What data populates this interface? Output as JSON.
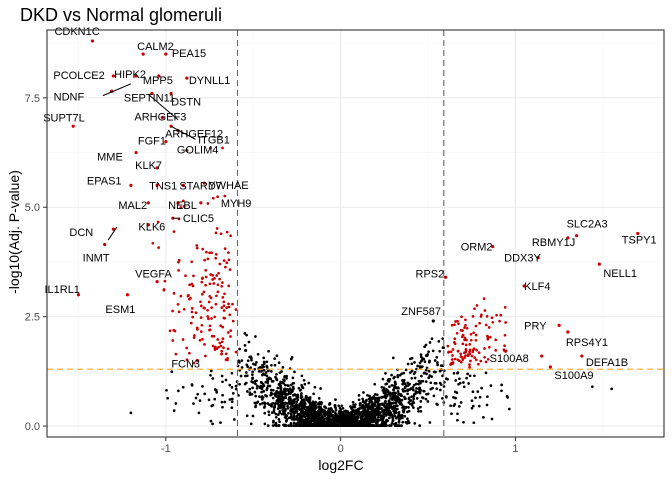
{
  "chart_data": {
    "type": "scatter",
    "title": "DKD vs Normal glomeruli",
    "xlabel": "log2FC",
    "ylabel": "-log10(Adj. P-value)",
    "xlim": [
      -1.68,
      1.85
    ],
    "ylim": [
      -0.25,
      9.05
    ],
    "xticks": [
      -1,
      0,
      1
    ],
    "xtick_labels": [
      "-1",
      "0",
      "1"
    ],
    "yticks": [
      0,
      2.5,
      5,
      7.5
    ],
    "ytick_labels": [
      "0.0",
      "2.5",
      "5.0",
      "7.5"
    ],
    "grid": true,
    "thresholds": {
      "log2fc": [
        -0.59,
        0.59
      ],
      "neglog10p": 1.3
    },
    "colors": {
      "significant": "#cc0000",
      "not_significant": "#000000",
      "fc_threshold_line": "#666666",
      "p_threshold_line": "#ffa32b",
      "panel_border": "#333333",
      "grid_major": "#ebebeb",
      "grid_minor": "#f5f5f5"
    },
    "labeled_genes": [
      {
        "name": "CDKN1C",
        "x": -1.42,
        "y": 8.8
      },
      {
        "name": "CALM2",
        "x": -1.13,
        "y": 8.5
      },
      {
        "name": "HIPK2",
        "x": -1.17,
        "y": 8.0
      },
      {
        "name": "PEA15",
        "x": -1.0,
        "y": 8.5
      },
      {
        "name": "PCOLCE2",
        "x": -1.3,
        "y": 8.0
      },
      {
        "name": "MPP5",
        "x": -1.04,
        "y": 8.0
      },
      {
        "name": "DYNLL1",
        "x": -0.88,
        "y": 7.95
      },
      {
        "name": "NDNF",
        "x": -1.31,
        "y": 7.65
      },
      {
        "name": "SEPTIN11",
        "x": -1.08,
        "y": 7.6
      },
      {
        "name": "DSTN",
        "x": -0.97,
        "y": 7.6
      },
      {
        "name": "SUPT7L",
        "x": -1.53,
        "y": 6.85
      },
      {
        "name": "ARHGEF3",
        "x": -1.02,
        "y": 7.05
      },
      {
        "name": "ARHGEF12",
        "x": -0.97,
        "y": 6.85
      },
      {
        "name": "ITGB1",
        "x": -0.93,
        "y": 6.75
      },
      {
        "name": "FGF1",
        "x": -1.0,
        "y": 6.5
      },
      {
        "name": "MME",
        "x": -1.17,
        "y": 6.25
      },
      {
        "name": "GOLIM4",
        "x": -0.88,
        "y": 6.3
      },
      {
        "name": "KLK7",
        "x": -1.05,
        "y": 5.9
      },
      {
        "name": "YWHAE",
        "x": -0.78,
        "y": 5.55
      },
      {
        "name": "EPAS1",
        "x": -1.2,
        "y": 5.5
      },
      {
        "name": "TNS1",
        "x": -1.05,
        "y": 5.5
      },
      {
        "name": "STARD7",
        "x": -0.9,
        "y": 5.5
      },
      {
        "name": "MAL2",
        "x": -1.1,
        "y": 5.1
      },
      {
        "name": "NEBL",
        "x": -0.93,
        "y": 5.1
      },
      {
        "name": "MYH9",
        "x": -0.8,
        "y": 5.1
      },
      {
        "name": "CLIC5",
        "x": -0.96,
        "y": 4.75
      },
      {
        "name": "DCN",
        "x": -1.3,
        "y": 4.5
      },
      {
        "name": "KLK6",
        "x": -1.1,
        "y": 4.6
      },
      {
        "name": "INMT",
        "x": -1.35,
        "y": 4.15
      },
      {
        "name": "VEGFA",
        "x": -1.05,
        "y": 3.3
      },
      {
        "name": "IL1RL1",
        "x": -1.5,
        "y": 3.0
      },
      {
        "name": "ESM1",
        "x": -1.22,
        "y": 3.0
      },
      {
        "name": "FCN3",
        "x": -0.82,
        "y": 1.5
      },
      {
        "name": "SLC2A3",
        "x": 1.35,
        "y": 4.35
      },
      {
        "name": "TSPY1",
        "x": 1.7,
        "y": 4.4
      },
      {
        "name": "RBMY1J",
        "x": 1.3,
        "y": 4.3
      },
      {
        "name": "ORM2",
        "x": 0.87,
        "y": 4.1
      },
      {
        "name": "DDX3Y",
        "x": 1.13,
        "y": 3.85
      },
      {
        "name": "NELL1",
        "x": 1.48,
        "y": 3.7
      },
      {
        "name": "RPS2",
        "x": 0.6,
        "y": 3.4
      },
      {
        "name": "KLF4",
        "x": 1.05,
        "y": 3.2
      },
      {
        "name": "ZNF587",
        "x": 0.53,
        "y": 2.4
      },
      {
        "name": "PRY",
        "x": 1.25,
        "y": 2.3
      },
      {
        "name": "RPS4Y1",
        "x": 1.3,
        "y": 2.15
      },
      {
        "name": "S100A8",
        "x": 1.15,
        "y": 1.6
      },
      {
        "name": "DEFA1B",
        "x": 1.38,
        "y": 1.6
      },
      {
        "name": "S100A9",
        "x": 1.2,
        "y": 1.35
      }
    ],
    "cloud_points": {
      "not_significant_count": 2400,
      "significant_down_count": 170,
      "significant_up_count": 110
    }
  }
}
